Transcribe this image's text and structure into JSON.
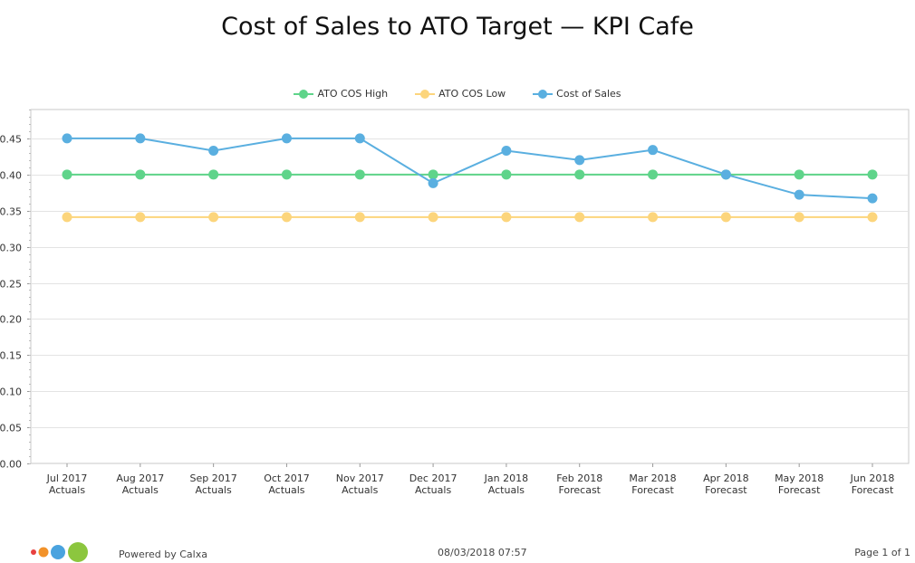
{
  "page": {
    "title": "Cost of Sales to ATO Target — KPI Cafe"
  },
  "footer": {
    "powered_by": "Powered by Calxa",
    "timestamp": "08/03/2018 07:57",
    "page_label": "Page 1 of 1"
  },
  "colors": {
    "high": "#5fd48a",
    "low": "#fcd57c",
    "cos": "#5aafe0",
    "logo": [
      "#e84040",
      "#f2922a",
      "#4aa3df",
      "#8cc63e"
    ]
  },
  "chart_data": {
    "type": "line",
    "title": "Cost of Sales to ATO Target — KPI Cafe",
    "categories": [
      [
        "Jul 2017",
        "Actuals"
      ],
      [
        "Aug 2017",
        "Actuals"
      ],
      [
        "Sep 2017",
        "Actuals"
      ],
      [
        "Oct 2017",
        "Actuals"
      ],
      [
        "Nov 2017",
        "Actuals"
      ],
      [
        "Dec 2017",
        "Actuals"
      ],
      [
        "Jan 2018",
        "Actuals"
      ],
      [
        "Feb 2018",
        "Forecast"
      ],
      [
        "Mar 2018",
        "Forecast"
      ],
      [
        "Apr 2018",
        "Forecast"
      ],
      [
        "May 2018",
        "Forecast"
      ],
      [
        "Jun 2018",
        "Forecast"
      ]
    ],
    "series": [
      {
        "name": "ATO COS High",
        "color": "#5fd48a",
        "values": [
          0.4,
          0.4,
          0.4,
          0.4,
          0.4,
          0.4,
          0.4,
          0.4,
          0.4,
          0.4,
          0.4,
          0.4
        ]
      },
      {
        "name": "ATO COS Low",
        "color": "#fcd57c",
        "values": [
          0.341,
          0.341,
          0.341,
          0.341,
          0.341,
          0.341,
          0.341,
          0.341,
          0.341,
          0.341,
          0.341,
          0.341
        ]
      },
      {
        "name": "Cost of Sales",
        "color": "#5aafe0",
        "values": [
          0.45,
          0.45,
          0.433,
          0.45,
          0.45,
          0.388,
          0.433,
          0.42,
          0.434,
          0.4,
          0.372,
          0.367
        ]
      }
    ],
    "ylim": [
      0,
      0.49
    ],
    "yticks": [
      "0.00",
      "0.05",
      "0.10",
      "0.15",
      "0.20",
      "0.25",
      "0.30",
      "0.35",
      "0.40",
      "0.45"
    ],
    "grid": true,
    "legend": "top-center"
  }
}
